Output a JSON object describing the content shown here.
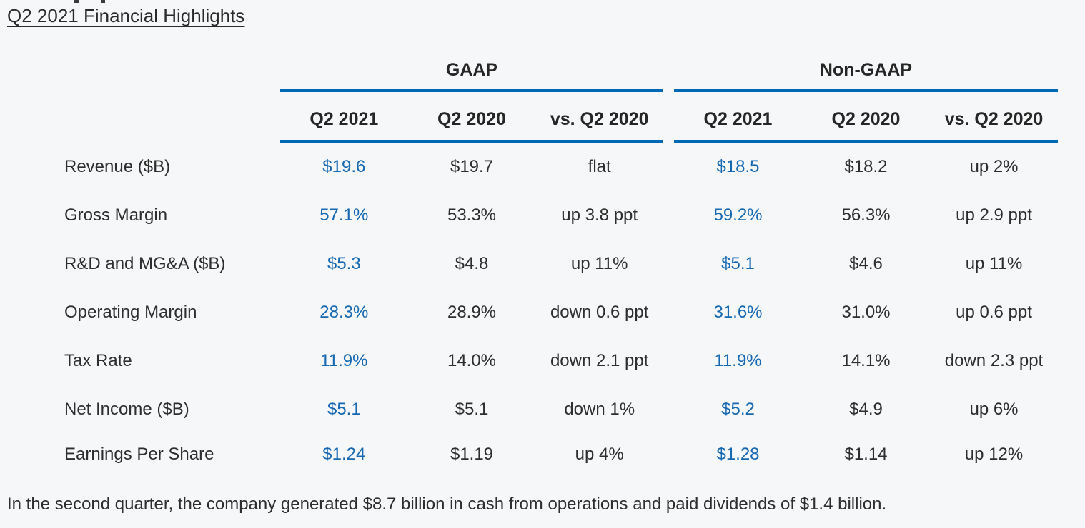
{
  "page": {
    "title": "Q2 2021 Financial Highlights",
    "footer": "In the second quarter, the company generated $8.7 billion in cash from operations and paid dividends of $1.4 billion."
  },
  "colors": {
    "accent_blue_rule": "#0068b5",
    "current_quarter_value_blue": "#1568b1",
    "text_dark": "#2b2b2b",
    "background": "#f6f7f8"
  },
  "table": {
    "sections": [
      {
        "title": "GAAP",
        "columns": [
          "Q2 2021",
          "Q2 2020",
          "vs. Q2 2020"
        ]
      },
      {
        "title": "Non-GAAP",
        "columns": [
          "Q2 2021",
          "Q2 2020",
          "vs. Q2 2020"
        ]
      }
    ],
    "rows": [
      {
        "label": "Revenue ($B)",
        "gaap": [
          "$19.6",
          "$19.7",
          "flat"
        ],
        "non_gaap": [
          "$18.5",
          "$18.2",
          "up 2%"
        ]
      },
      {
        "label": "Gross Margin",
        "gaap": [
          "57.1%",
          "53.3%",
          "up 3.8 ppt"
        ],
        "non_gaap": [
          "59.2%",
          "56.3%",
          "up 2.9 ppt"
        ]
      },
      {
        "label": "R&D and MG&A ($B)",
        "gaap": [
          "$5.3",
          "$4.8",
          "up 11%"
        ],
        "non_gaap": [
          "$5.1",
          "$4.6",
          "up 11%"
        ]
      },
      {
        "label": "Operating Margin",
        "gaap": [
          "28.3%",
          "28.9%",
          "down 0.6 ppt"
        ],
        "non_gaap": [
          "31.6%",
          "31.0%",
          "up 0.6 ppt"
        ]
      },
      {
        "label": "Tax Rate",
        "gaap": [
          "11.9%",
          "14.0%",
          "down 2.1 ppt"
        ],
        "non_gaap": [
          "11.9%",
          "14.1%",
          "down 2.3 ppt"
        ]
      },
      {
        "label": "Net Income ($B)",
        "gaap": [
          "$5.1",
          "$5.1",
          "down 1%"
        ],
        "non_gaap": [
          "$5.2",
          "$4.9",
          "up 6%"
        ]
      },
      {
        "label": "Earnings Per Share",
        "gaap": [
          "$1.24",
          "$1.19",
          "up 4%"
        ],
        "non_gaap": [
          "$1.28",
          "$1.14",
          "up 12%"
        ]
      }
    ]
  }
}
